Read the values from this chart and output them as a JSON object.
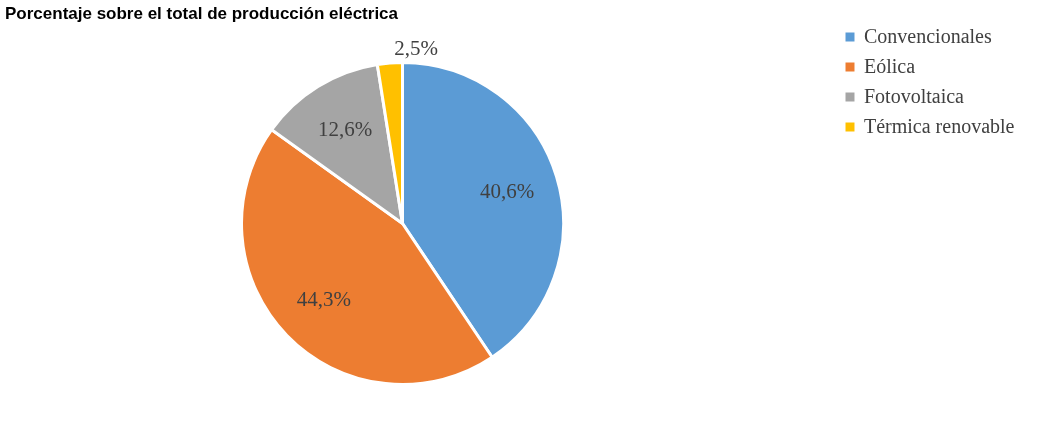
{
  "chart_data": {
    "type": "pie",
    "title": "Porcentaje sobre el total de producción eléctrica",
    "categories": [
      "Convencionales",
      "Eólica",
      "Fotovoltaica",
      "Térmica renovable"
    ],
    "values": [
      40.6,
      44.3,
      12.6,
      2.5
    ],
    "colors": [
      "#5b9bd5",
      "#ed7d31",
      "#a5a5a5",
      "#ffc000"
    ],
    "value_labels": [
      "40,6%",
      "44,3%",
      "12,6%",
      "2,5%"
    ],
    "legend": "right"
  }
}
